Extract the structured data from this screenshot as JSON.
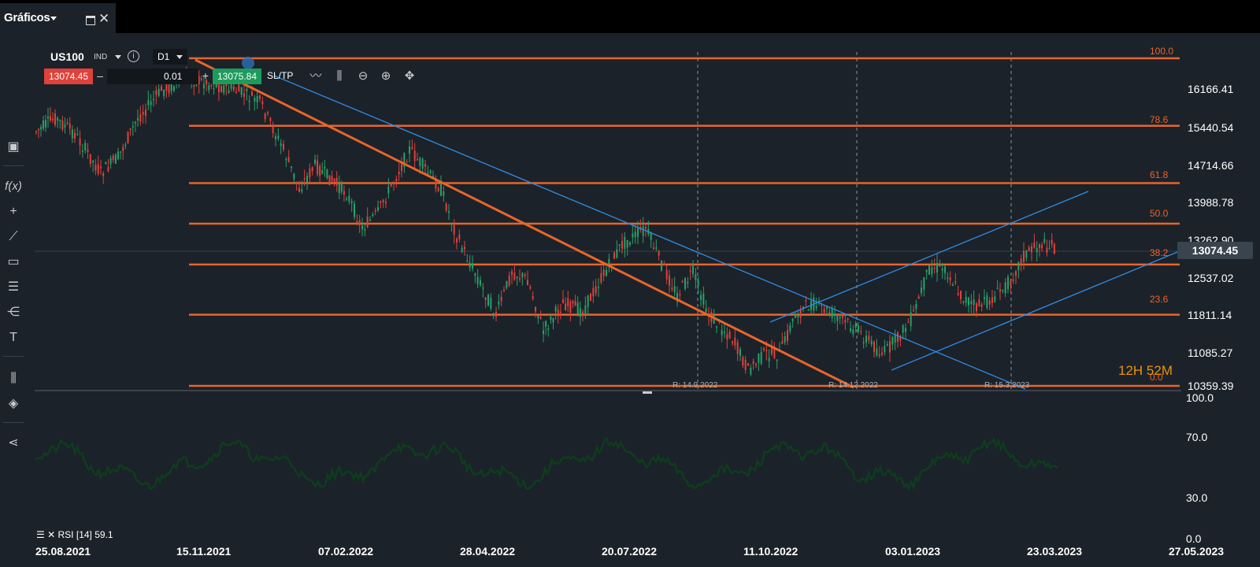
{
  "window": {
    "tab_title": "Gráficos"
  },
  "instrument": {
    "symbol": "US100",
    "type": "IND",
    "timeframe": "D1"
  },
  "trade": {
    "sell_price": "13074.45",
    "quantity": "0.01",
    "buy_price": "13075.84",
    "sltp_label": "SL/TP",
    "minus": "–",
    "plus": "+"
  },
  "price_axis": {
    "labels": [
      "16166.41",
      "15440.54",
      "14714.66",
      "13988.78",
      "13262.90",
      "12537.02",
      "11811.14",
      "11085.27",
      "10359.39"
    ],
    "current_price": "13074.45"
  },
  "fibonacci": {
    "levels": [
      {
        "label": "100.0",
        "price": 16890
      },
      {
        "label": "78.6",
        "price": 15445
      },
      {
        "label": "61.8",
        "price": 14320
      },
      {
        "label": "50.0",
        "price": 13525
      },
      {
        "label": "38.2",
        "price": 12725
      },
      {
        "label": "23.6",
        "price": 11740
      },
      {
        "label": "0.0",
        "price": 10150
      }
    ],
    "color": "#e8652b"
  },
  "rollovers": [
    {
      "label": "R: 14.9.2022"
    },
    {
      "label": "R: 14.12.2022"
    },
    {
      "label": "R: 15.3.2023"
    }
  ],
  "countdown": "12H 52M",
  "rsi": {
    "legend": "RSI [14] 59.1",
    "axis": [
      "100.0",
      "70.0",
      "30.0",
      "0.0"
    ]
  },
  "date_axis": [
    "25.08.2021",
    "15.11.2021",
    "07.02.2022",
    "28.04.2022",
    "20.07.2022",
    "11.10.2022",
    "03.01.2023",
    "23.03.2023",
    "27.05.2023"
  ],
  "colors": {
    "up": "#26a269",
    "down": "#e0413b",
    "trend": "#2f8de4",
    "fib": "#e8652b",
    "rsi": "#0d3d1c"
  },
  "tools": [
    "window-icon",
    "function-icon",
    "crosshair-icon",
    "line-icon",
    "rectangle-icon",
    "fib-icon",
    "pitchfork-icon",
    "text-icon",
    "chart-type-icon",
    "layers-icon",
    "share-icon"
  ]
}
